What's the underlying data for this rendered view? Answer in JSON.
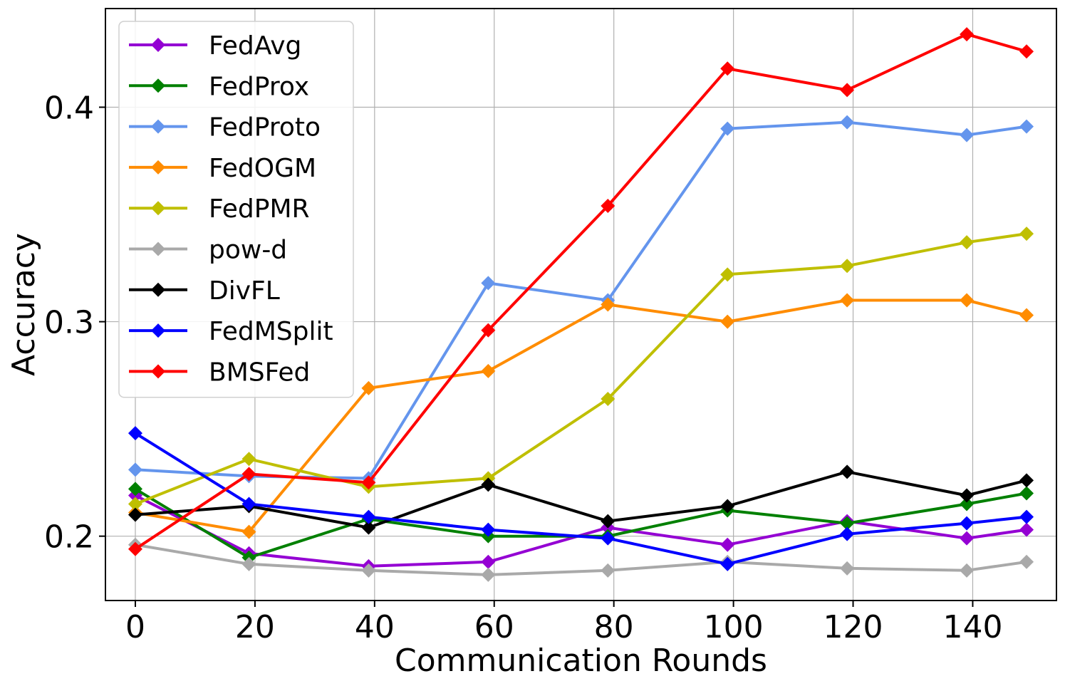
{
  "chart_data": {
    "type": "line",
    "title": "",
    "xlabel": "Communication Rounds",
    "ylabel": "Accuracy",
    "xlim": [
      -5,
      154
    ],
    "ylim": [
      0.17,
      0.446
    ],
    "xticks": [
      0,
      20,
      40,
      60,
      80,
      100,
      120,
      140
    ],
    "yticks": [
      0.2,
      0.3,
      0.4
    ],
    "xtick_labels": [
      "0",
      "20",
      "40",
      "60",
      "80",
      "100",
      "120",
      "140"
    ],
    "ytick_labels": [
      "0.2",
      "0.3",
      "0.4"
    ],
    "grid": true,
    "legend_position": "top-left",
    "x": [
      0,
      19,
      39,
      59,
      79,
      99,
      119,
      139,
      149
    ],
    "series": [
      {
        "name": "FedAvg",
        "color": "#9400D3",
        "values": [
          0.219,
          0.192,
          0.186,
          0.188,
          0.204,
          0.196,
          0.207,
          0.199,
          0.203
        ]
      },
      {
        "name": "FedProx",
        "color": "#008000",
        "values": [
          0.222,
          0.19,
          0.208,
          0.2,
          0.2,
          0.212,
          0.206,
          0.215,
          0.22
        ]
      },
      {
        "name": "FedProto",
        "color": "#6495ED",
        "values": [
          0.231,
          0.228,
          0.227,
          0.318,
          0.31,
          0.39,
          0.393,
          0.387,
          0.391
        ]
      },
      {
        "name": "FedOGM",
        "color": "#FF8C00",
        "values": [
          0.211,
          0.202,
          0.269,
          0.277,
          0.308,
          0.3,
          0.31,
          0.31,
          0.303
        ]
      },
      {
        "name": "FedPMR",
        "color": "#BFBF00",
        "values": [
          0.215,
          0.236,
          0.223,
          0.227,
          0.264,
          0.322,
          0.326,
          0.337,
          0.341
        ]
      },
      {
        "name": "pow-d",
        "color": "#A9A9A9",
        "values": [
          0.196,
          0.187,
          0.184,
          0.182,
          0.184,
          0.188,
          0.185,
          0.184,
          0.188
        ]
      },
      {
        "name": "DivFL",
        "color": "#000000",
        "values": [
          0.21,
          0.214,
          0.204,
          0.224,
          0.207,
          0.214,
          0.23,
          0.219,
          0.226
        ]
      },
      {
        "name": "FedMSplit",
        "color": "#0000FF",
        "values": [
          0.248,
          0.215,
          0.209,
          0.203,
          0.199,
          0.187,
          0.201,
          0.206,
          0.209
        ]
      },
      {
        "name": "BMSFed",
        "color": "#FF0000",
        "values": [
          0.194,
          0.229,
          0.225,
          0.296,
          0.354,
          0.418,
          0.408,
          0.434,
          0.426
        ]
      }
    ]
  }
}
